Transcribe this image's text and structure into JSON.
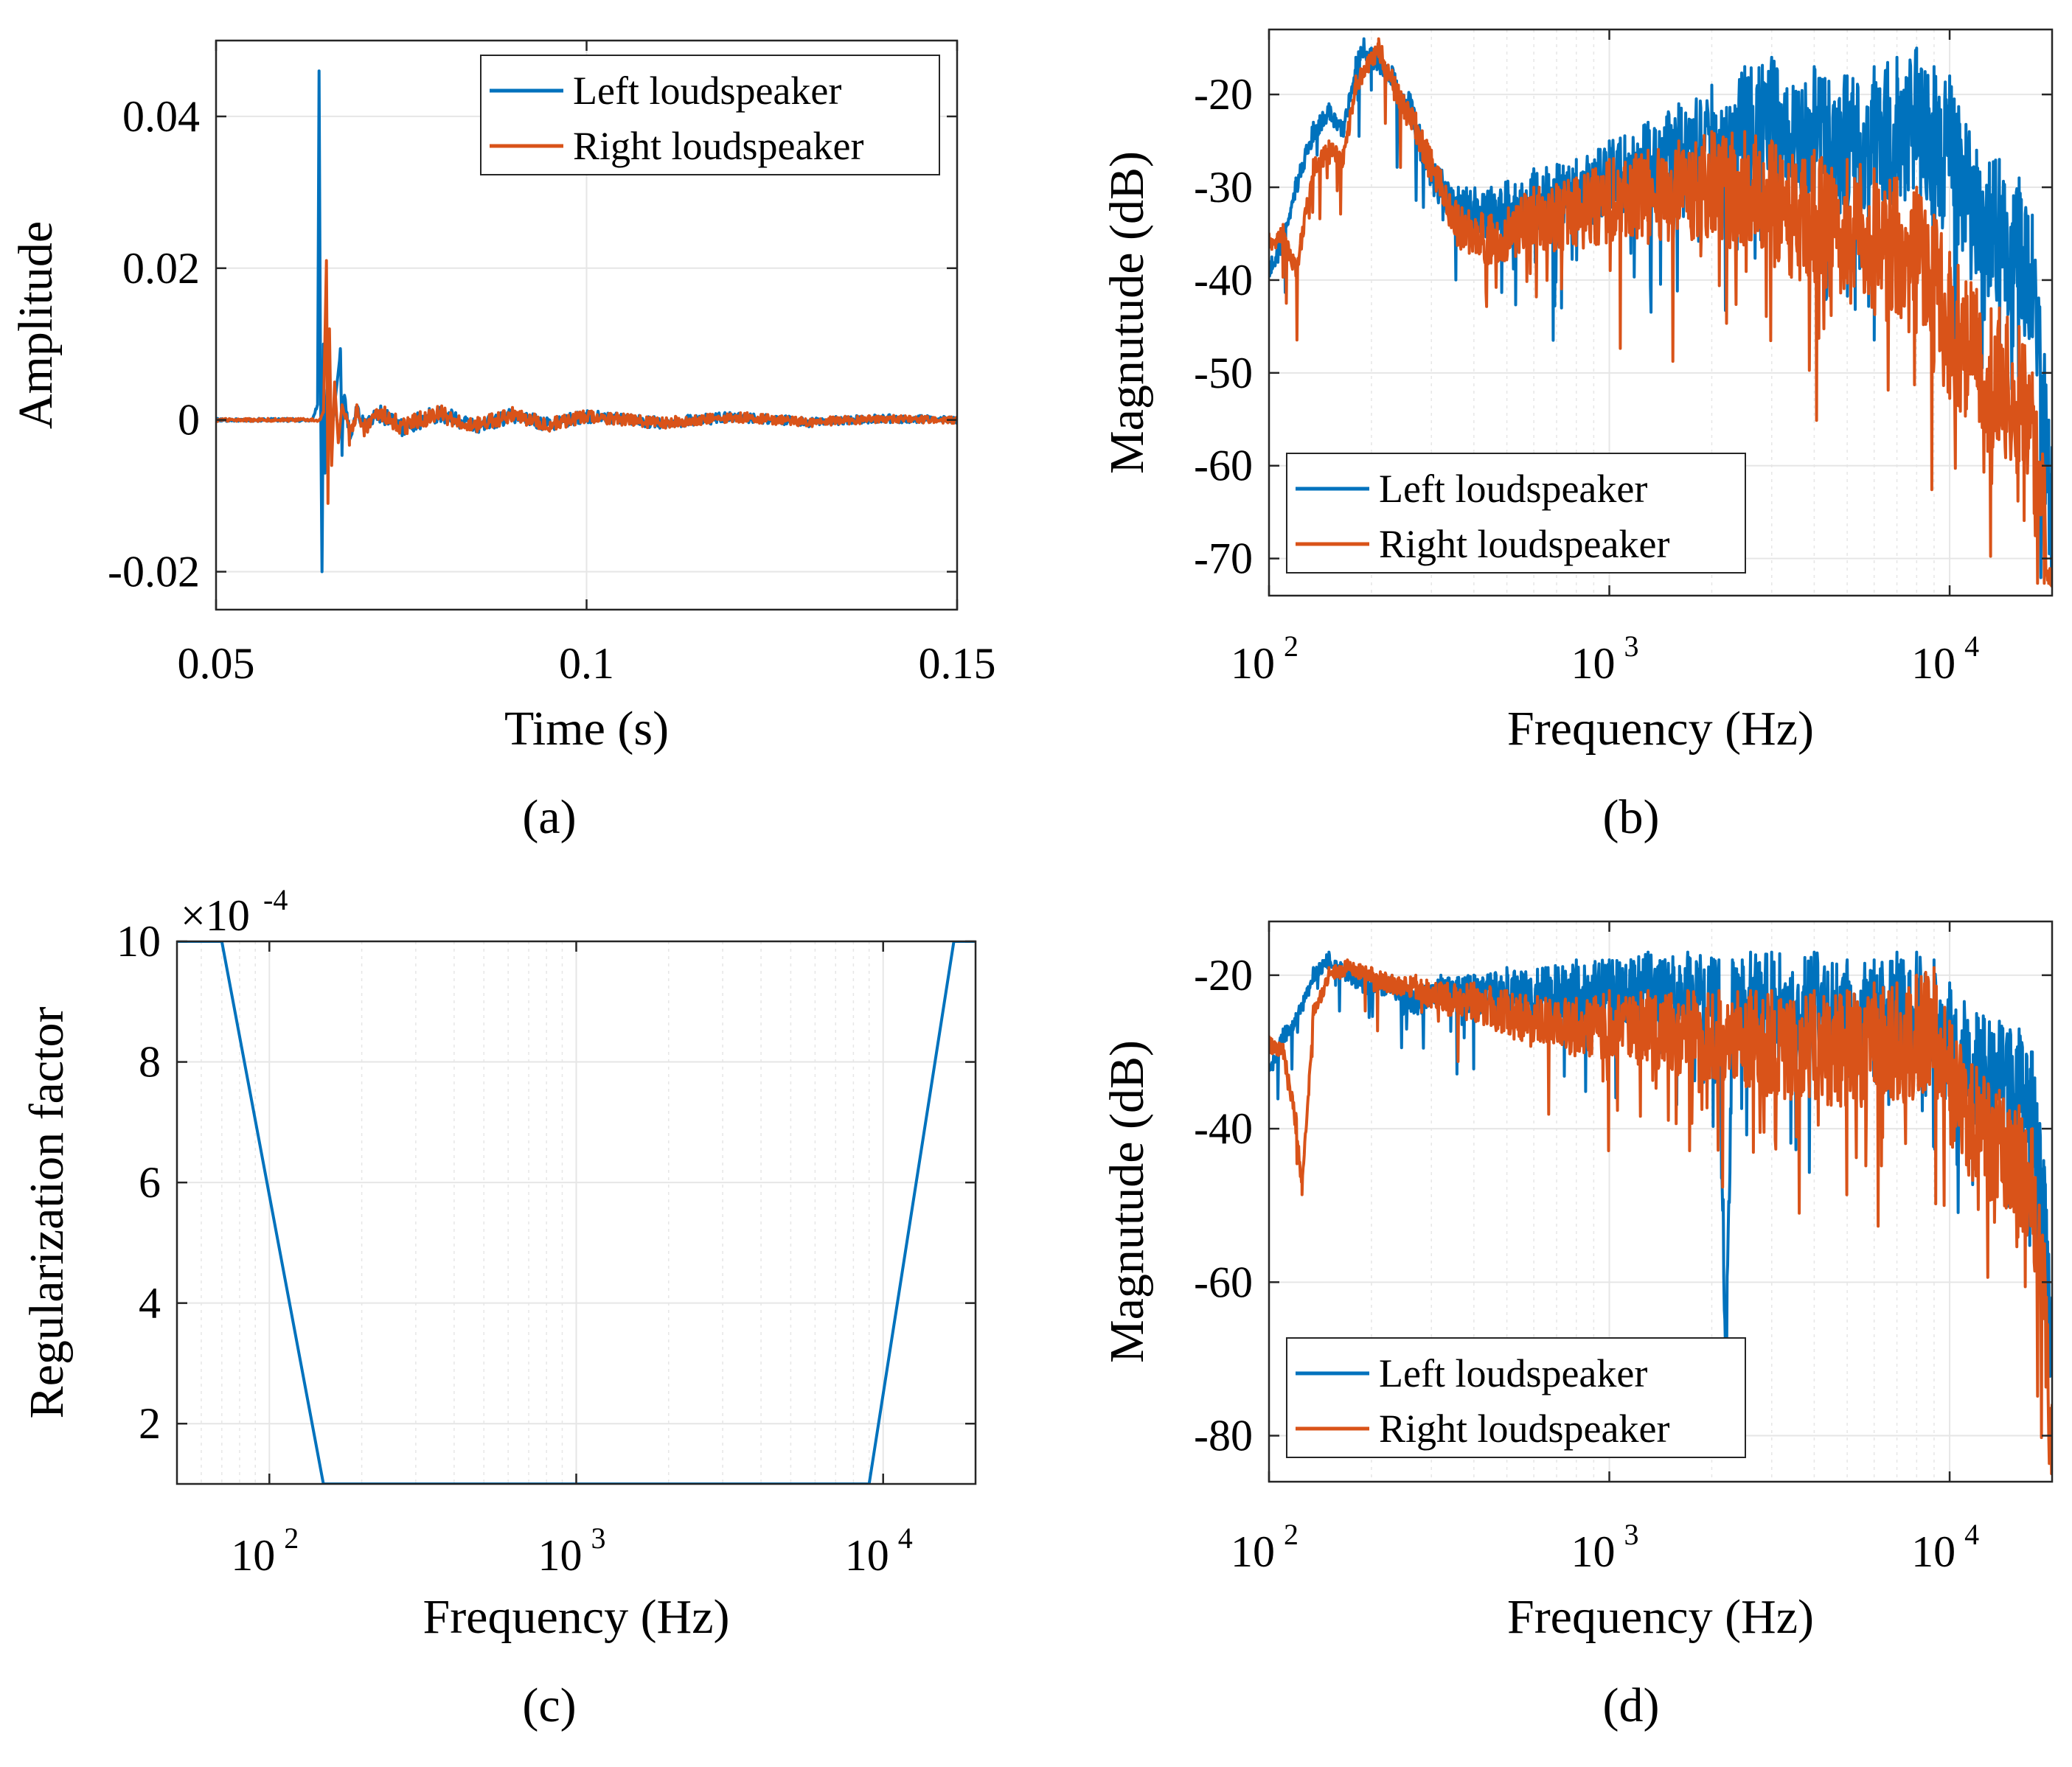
{
  "colors": {
    "left": "#0072BD",
    "right": "#D95319",
    "grid": "#E6E6E6",
    "axis": "#262626"
  },
  "chart_data": [
    {
      "id": "a",
      "type": "line",
      "caption": "(a)",
      "xlabel": "Time (s)",
      "ylabel": "Amplitude",
      "xscale": "linear",
      "xlim": [
        0.05,
        0.15
      ],
      "ylim": [
        -0.025,
        0.05
      ],
      "xticks": [
        0.05,
        0.1,
        0.15
      ],
      "xtick_labels": [
        "0.05",
        "0.1",
        "0.15"
      ],
      "yticks": [
        -0.02,
        0,
        0.02,
        0.04
      ],
      "ytick_labels": [
        "-0.02",
        "0",
        "0.02",
        "0.04"
      ],
      "grid": true,
      "legend_location": "top-right",
      "series": [
        {
          "name": "Left loudspeaker",
          "color_key": "left",
          "x": [
            0.05,
            0.063,
            0.0637,
            0.0639,
            0.0641,
            0.0643,
            0.0645,
            0.0647,
            0.065,
            0.0655,
            0.066,
            0.0668,
            0.067,
            0.0672,
            0.068,
            0.069,
            0.07,
            0.072,
            0.075,
            0.08,
            0.085,
            0.09,
            0.095,
            0.1,
            0.11,
            0.12,
            0.13,
            0.14,
            0.15
          ],
          "y": [
            0,
            0,
            0.002,
            0.046,
            0.005,
            -0.02,
            0.01,
            -0.007,
            0.004,
            -0.003,
            0.002,
            0.009,
            -0.004,
            0.003,
            -0.002,
            0.0015,
            -0.001,
            0.001,
            -0.001,
            0.0008,
            -0.0008,
            0.0006,
            -0.0006,
            0.0005,
            -0.0004,
            0.0004,
            -0.0003,
            0.0002,
            0
          ]
        },
        {
          "name": "Right loudspeaker",
          "color_key": "right",
          "x": [
            0.05,
            0.064,
            0.0645,
            0.0649,
            0.0651,
            0.0653,
            0.0656,
            0.066,
            0.0665,
            0.067,
            0.068,
            0.069,
            0.07,
            0.072,
            0.075,
            0.08,
            0.085,
            0.09,
            0.095,
            0.1,
            0.11,
            0.12,
            0.13,
            0.14,
            0.15
          ],
          "y": [
            0,
            0,
            0.001,
            0.021,
            -0.011,
            0.012,
            -0.006,
            0.005,
            -0.003,
            0.002,
            -0.002,
            0.0015,
            -0.001,
            0.0012,
            -0.001,
            0.0009,
            -0.0008,
            0.0007,
            -0.0006,
            0.0005,
            -0.0004,
            0.0004,
            -0.0003,
            0.0002,
            0
          ]
        }
      ],
      "legend": [
        "Left loudspeaker",
        "Right loudspeaker"
      ]
    },
    {
      "id": "b",
      "type": "line",
      "caption": "(b)",
      "xlabel": "Frequency (Hz)",
      "ylabel": "Magnutude (dB)",
      "xscale": "log",
      "xlim": [
        100,
        20000
      ],
      "ylim": [
        -74,
        -13
      ],
      "xticks": [
        100,
        1000,
        10000
      ],
      "xtick_bases": [
        "10",
        "10",
        "10"
      ],
      "xtick_exps": [
        "2",
        "3",
        "4"
      ],
      "yticks": [
        -70,
        -60,
        -50,
        -40,
        -30,
        -20
      ],
      "ytick_labels": [
        "-70",
        "-60",
        "-50",
        "-40",
        "-30",
        "-20"
      ],
      "grid": true,
      "legend_location": "bottom-left",
      "series": [
        {
          "name": "Left loudspeaker",
          "color_key": "left",
          "x": [
            100,
            110,
            120,
            135,
            150,
            165,
            180,
            190,
            200,
            230,
            260,
            300,
            360,
            450,
            600,
            800,
            1000,
            1300,
            1600,
            2000,
            2500,
            3000,
            4000,
            5000,
            6000,
            7000,
            8000,
            9000,
            10000,
            12000,
            14000,
            16000,
            17500,
            19000,
            20000
          ],
          "y": [
            -38,
            -35,
            -29,
            -23,
            -21,
            -23,
            -16,
            -14,
            -15,
            -17,
            -20,
            -27,
            -30,
            -30,
            -28,
            -27,
            -25,
            -23,
            -21,
            -19,
            -17,
            -16,
            -17,
            -18,
            -17,
            -16,
            -15,
            -17,
            -18,
            -26,
            -27,
            -29,
            -33,
            -48,
            -58
          ]
        },
        {
          "name": "Right loudspeaker",
          "color_key": "right",
          "x": [
            100,
            110,
            120,
            135,
            150,
            165,
            180,
            195,
            210,
            240,
            270,
            300,
            360,
            450,
            600,
            800,
            1000,
            1300,
            1600,
            2000,
            2500,
            3000,
            4000,
            5000,
            6000,
            7000,
            8000,
            9000,
            10000,
            12000,
            14000,
            16000,
            17500,
            19000,
            20000
          ],
          "y": [
            -35,
            -34,
            -38,
            -27,
            -25,
            -26,
            -18,
            -16,
            -14,
            -19,
            -22,
            -26,
            -32,
            -33,
            -30,
            -29,
            -27,
            -26,
            -25,
            -24,
            -24,
            -25,
            -26,
            -27,
            -28,
            -29,
            -30,
            -33,
            -37,
            -41,
            -43,
            -45,
            -50,
            -60,
            -73
          ]
        }
      ],
      "legend": [
        "Left loudspeaker",
        "Right loudspeaker"
      ]
    },
    {
      "id": "c",
      "type": "line",
      "caption": "(c)",
      "xlabel": "Frequency (Hz)",
      "ylabel": "Regularization factor",
      "multiplier_base": "×10",
      "multiplier_exp": "-4",
      "xscale": "log",
      "xlim": [
        50,
        20000
      ],
      "ylim": [
        1,
        10
      ],
      "xticks": [
        100,
        1000,
        10000
      ],
      "xtick_bases": [
        "10",
        "10",
        "10"
      ],
      "xtick_exps": [
        "2",
        "3",
        "4"
      ],
      "yticks": [
        2,
        4,
        6,
        8,
        10
      ],
      "ytick_labels": [
        "2",
        "4",
        "6",
        "8",
        "10"
      ],
      "grid": true,
      "series": [
        {
          "name": "Regularization factor",
          "color_key": "left",
          "x": [
            50,
            70,
            150,
            9000,
            17000,
            20000
          ],
          "y": [
            10,
            10,
            1,
            1,
            10,
            10
          ]
        }
      ]
    },
    {
      "id": "d",
      "type": "line",
      "caption": "(d)",
      "xlabel": "Frequency (Hz)",
      "ylabel": "Magnutude (dB)",
      "xscale": "log",
      "xlim": [
        100,
        20000
      ],
      "ylim": [
        -86,
        -13
      ],
      "xticks": [
        100,
        1000,
        10000
      ],
      "xtick_bases": [
        "10",
        "10",
        "10"
      ],
      "xtick_exps": [
        "2",
        "3",
        "4"
      ],
      "yticks": [
        -80,
        -60,
        -40,
        -20
      ],
      "ytick_labels": [
        "-80",
        "-60",
        "-40",
        "-20"
      ],
      "grid": true,
      "legend_location": "bottom-left",
      "series": [
        {
          "name": "Left loudspeaker",
          "color_key": "left",
          "x": [
            100,
            110,
            120,
            135,
            150,
            170,
            200,
            230,
            270,
            320,
            400,
            500,
            650,
            800,
            1000,
            1300,
            1700,
            2100,
            2200,
            2300,
            2600,
            3000,
            4000,
            5000,
            6000,
            7000,
            8000,
            9000,
            10000,
            12000,
            14000,
            16000,
            17500,
            19000,
            20000
          ],
          "y": [
            -32,
            -27,
            -25,
            -19,
            -17,
            -19,
            -21,
            -20,
            -22,
            -20,
            -20,
            -19,
            -19,
            -18,
            -18,
            -17,
            -17,
            -18,
            -66,
            -18,
            -17,
            -17,
            -17,
            -18,
            -18,
            -17,
            -17,
            -18,
            -21,
            -25,
            -26,
            -27,
            -30,
            -45,
            -62
          ]
        },
        {
          "name": "Right loudspeaker",
          "color_key": "right",
          "x": [
            100,
            110,
            120,
            125,
            135,
            150,
            170,
            200,
            230,
            270,
            320,
            400,
            500,
            650,
            800,
            1000,
            1300,
            1700,
            2100,
            2600,
            3000,
            4000,
            5000,
            6000,
            7000,
            8000,
            9000,
            10000,
            12000,
            14000,
            16000,
            17500,
            19000,
            20000
          ],
          "y": [
            -28,
            -29,
            -38,
            -47,
            -24,
            -19,
            -18,
            -19,
            -20,
            -20,
            -21,
            -21,
            -22,
            -23,
            -23,
            -22,
            -22,
            -22,
            -22,
            -22,
            -22,
            -22,
            -22,
            -21,
            -21,
            -20,
            -19,
            -26,
            -32,
            -35,
            -37,
            -40,
            -55,
            -76
          ]
        }
      ],
      "legend": [
        "Left loudspeaker",
        "Right loudspeaker"
      ]
    }
  ]
}
